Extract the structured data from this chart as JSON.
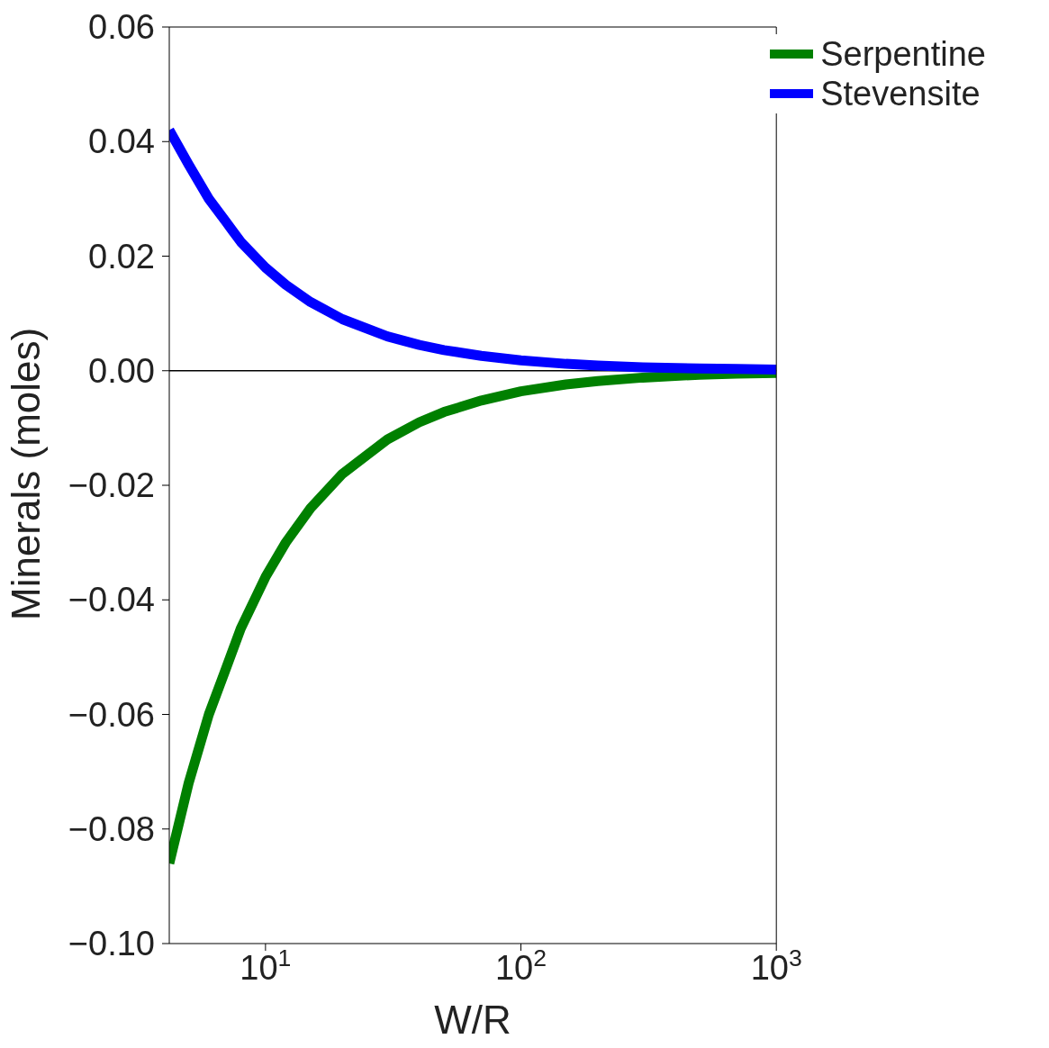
{
  "chart_data": {
    "type": "line",
    "xlabel": "W/R",
    "ylabel": "Minerals (moles)",
    "log": "x",
    "xlim": [
      4.2,
      1000
    ],
    "xticks": [
      {
        "value": 10,
        "label": "10$^{1}$"
      },
      {
        "value": 100,
        "label": "10$^{2}$"
      },
      {
        "value": 1000,
        "label": "10$^{3}$"
      }
    ],
    "ylim": [
      -0.1,
      0.06
    ],
    "yticks": [
      {
        "value": -0.1,
        "label": "−0.10"
      },
      {
        "value": -0.08,
        "label": "−0.08"
      },
      {
        "value": -0.06,
        "label": "−0.06"
      },
      {
        "value": -0.04,
        "label": "−0.04"
      },
      {
        "value": -0.02,
        "label": "−0.02"
      },
      {
        "value": 0,
        "label": "0.00"
      },
      {
        "value": 0.02,
        "label": "0.02"
      },
      {
        "value": 0.04,
        "label": "0.04"
      },
      {
        "value": 0.06,
        "label": "0.06"
      }
    ],
    "x": [
      4.2,
      5,
      6,
      7,
      8,
      10,
      12,
      15,
      20,
      30,
      40,
      50,
      70,
      100,
      150,
      200,
      300,
      500,
      700,
      1000
    ],
    "series": [
      {
        "name": "Serpentine",
        "color": "#008000",
        "values": [
          -0.086,
          -0.072,
          -0.06,
          -0.052,
          -0.045,
          -0.036,
          -0.03,
          -0.024,
          -0.018,
          -0.012,
          -0.009,
          -0.0072,
          -0.0052,
          -0.0036,
          -0.0024,
          -0.0018,
          -0.0012,
          -0.0007,
          -0.0005,
          -0.0004
        ]
      },
      {
        "name": "Stevensite",
        "color": "#0000ff",
        "values": [
          0.042,
          0.036,
          0.03,
          0.026,
          0.0225,
          0.018,
          0.015,
          0.012,
          0.009,
          0.006,
          0.0045,
          0.0036,
          0.0026,
          0.0018,
          0.0012,
          0.0009,
          0.0006,
          0.0004,
          0.0003,
          0.0002
        ]
      }
    ],
    "ref_lines": [
      {
        "axis": "y",
        "value": 0,
        "color": "#000000"
      }
    ],
    "grid": false,
    "legend": "top right",
    "marker": "none",
    "line_style": "solid"
  }
}
